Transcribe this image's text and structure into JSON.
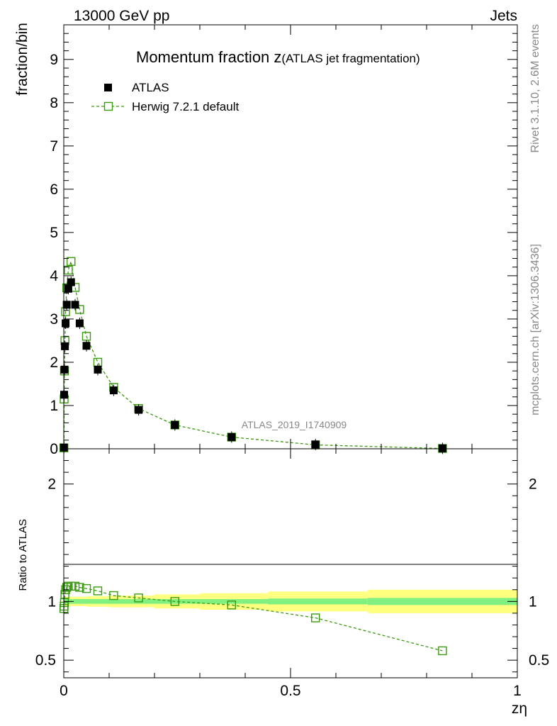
{
  "header": {
    "energy_label": "13000 GeV pp",
    "category_label": "Jets"
  },
  "side_labels": {
    "rivet": "Rivet 3.1.10,  2.6M events",
    "source": "mcplots.cern.ch [arXiv:1306.3436]"
  },
  "colors": {
    "data": "#000000",
    "mc": "#3a9a10",
    "band_inner": "#80f080",
    "band_outer": "#ffff80",
    "grey_text": "#888888"
  },
  "chart_data": [
    {
      "type": "scatter",
      "panel": "main",
      "title": "Momentum fraction z",
      "title_suffix": "(ATLAS jet fragmentation)",
      "analysis_tag": "ATLAS_2019_I1740909",
      "xlabel": "zη",
      "ylabel": "fraction/bin",
      "xlim": [
        0,
        1
      ],
      "ylim": [
        0,
        9.8
      ],
      "xticks": [
        0,
        0.5,
        1
      ],
      "xtick_labels": [
        "0",
        "0.5",
        "1"
      ],
      "yticks": [
        0,
        1,
        2,
        3,
        4,
        5,
        6,
        7,
        8,
        9
      ],
      "ytick_labels": [
        "0",
        "1",
        "2",
        "3",
        "4",
        "5",
        "6",
        "7",
        "8",
        "9"
      ],
      "legend": {
        "position": "top-left",
        "entries": [
          "ATLAS",
          "Herwig 7.2.1 default"
        ]
      },
      "series": [
        {
          "name": "ATLAS",
          "marker": "filled-square",
          "x": [
            0.0003,
            0.0008,
            0.0015,
            0.0025,
            0.004,
            0.0065,
            0.01,
            0.016,
            0.025,
            0.035,
            0.05,
            0.075,
            0.11,
            0.165,
            0.245,
            0.37,
            0.555,
            0.835
          ],
          "y": [
            0.03,
            1.25,
            1.83,
            2.37,
            2.9,
            3.33,
            3.7,
            3.85,
            3.33,
            2.9,
            2.38,
            1.83,
            1.35,
            0.9,
            0.55,
            0.27,
            0.1,
            0.01
          ]
        },
        {
          "name": "Herwig 7.2.1 default",
          "marker": "open-square",
          "line": "dashed",
          "x": [
            0.0003,
            0.0008,
            0.0015,
            0.0025,
            0.004,
            0.0065,
            0.01,
            0.016,
            0.025,
            0.035,
            0.05,
            0.075,
            0.11,
            0.165,
            0.245,
            0.37,
            0.555,
            0.835
          ],
          "y": [
            0.02,
            1.15,
            1.8,
            2.5,
            3.17,
            3.72,
            4.13,
            4.33,
            3.73,
            3.22,
            2.6,
            2.0,
            1.42,
            0.93,
            0.55,
            0.27,
            0.09,
            0.007
          ]
        }
      ]
    },
    {
      "type": "scatter",
      "panel": "ratio",
      "ylabel": "Ratio to ATLAS",
      "xlabel": "zη",
      "xlim": [
        0,
        1
      ],
      "ylim": [
        0.35,
        2.3
      ],
      "yticks": [
        0.5,
        1,
        2
      ],
      "ytick_labels": [
        "0.5",
        "1",
        "2"
      ],
      "band_edges": [
        0,
        0.02,
        0.05,
        0.1,
        0.2,
        0.3,
        0.45,
        0.67,
        1.0
      ],
      "band_inner_halfwidth": [
        0.02,
        0.02,
        0.02,
        0.02,
        0.02,
        0.02,
        0.025,
        0.03
      ],
      "band_outer_halfwidth": [
        0.04,
        0.04,
        0.045,
        0.05,
        0.06,
        0.07,
        0.085,
        0.1
      ],
      "series": [
        {
          "name": "Herwig 7.2.1 default",
          "marker": "open-square",
          "line": "dashed",
          "x": [
            0.0003,
            0.0008,
            0.0015,
            0.0025,
            0.004,
            0.0065,
            0.01,
            0.016,
            0.025,
            0.035,
            0.05,
            0.075,
            0.11,
            0.165,
            0.245,
            0.37,
            0.555,
            0.835
          ],
          "y": [
            0.94,
            0.96,
            0.99,
            1.06,
            1.1,
            1.12,
            1.13,
            1.13,
            1.13,
            1.12,
            1.11,
            1.09,
            1.05,
            1.03,
            1.0,
            0.97,
            0.86,
            0.58
          ]
        }
      ]
    }
  ]
}
